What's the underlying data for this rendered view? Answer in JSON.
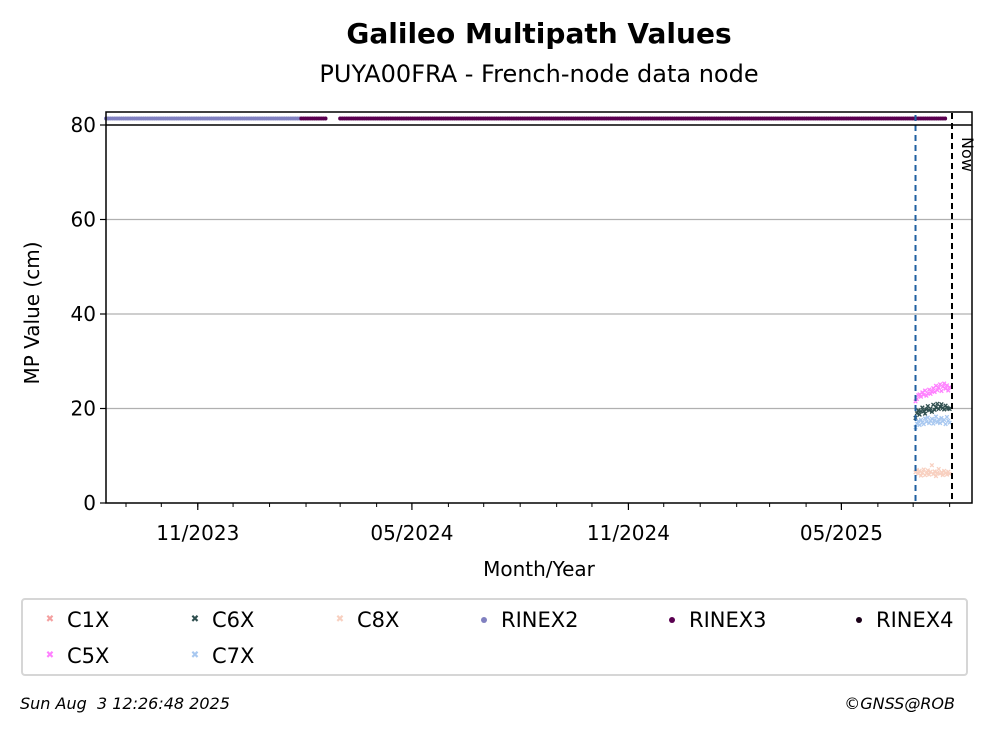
{
  "chart_data": {
    "type": "scatter",
    "title": "Galileo Multipath Values",
    "subtitle": "PUYA00FRA - French-node data node",
    "xlabel": "Month/Year",
    "ylabel": "MP Value (cm)",
    "x_range": [
      "2023-08-15",
      "2025-08-20"
    ],
    "ylim": [
      0,
      80
    ],
    "y_ticks": [
      0,
      20,
      40,
      60,
      80
    ],
    "x_ticks": [
      {
        "date": "2023-11-01",
        "label": "11/2023"
      },
      {
        "date": "2024-05-01",
        "label": "05/2024"
      },
      {
        "date": "2024-11-01",
        "label": "11/2024"
      },
      {
        "date": "2025-05-01",
        "label": "05/2025"
      }
    ],
    "grid": "horizontal",
    "now_label": "Now",
    "now_date": "2025-08-03",
    "vline_blue_date": "2025-07-03",
    "legend_placement": "bottom",
    "series": [
      {
        "name": "C1X",
        "color": "#f4a0a0",
        "marker": "x",
        "start": "2025-07-03",
        "end": "2025-08-01",
        "points": []
      },
      {
        "name": "C5X",
        "color": "#ff80ff",
        "marker": "x",
        "start": "2025-07-03",
        "end": "2025-08-01",
        "points": [
          21.5,
          22.0,
          22.8,
          23.0,
          22.5,
          23.4,
          22.9,
          23.8,
          22.7,
          23.2,
          24.0,
          23.1,
          23.6,
          24.3,
          23.5,
          24.8,
          23.9,
          24.4,
          25.1,
          23.7,
          24.6,
          25.3,
          24.2,
          24.9,
          23.8,
          24.5
        ]
      },
      {
        "name": "C6X",
        "color": "#2f4f4f",
        "marker": "x",
        "start": "2025-07-03",
        "end": "2025-08-01",
        "points": [
          18.0,
          19.0,
          19.6,
          18.7,
          19.4,
          20.2,
          19.5,
          18.9,
          19.8,
          20.5,
          19.6,
          20.0,
          19.3,
          20.8,
          19.7,
          20.3,
          21.0,
          19.9,
          20.4,
          20.9,
          20.1,
          19.8,
          20.6,
          20.2,
          20.0,
          19.9
        ]
      },
      {
        "name": "C7X",
        "color": "#a8c8f0",
        "marker": "x",
        "start": "2025-07-03",
        "end": "2025-08-01",
        "points": [
          16.0,
          16.8,
          17.3,
          16.5,
          17.6,
          17.0,
          16.7,
          17.9,
          17.2,
          18.1,
          16.9,
          17.4,
          17.8,
          16.8,
          17.5,
          18.3,
          17.1,
          17.7,
          16.9,
          18.0,
          17.3,
          17.6,
          16.7,
          18.2,
          17.4,
          17.0
        ]
      },
      {
        "name": "C8X",
        "color": "#f8d0c0",
        "marker": "x",
        "start": "2025-07-03",
        "end": "2025-08-01",
        "points": [
          6.5,
          7.0,
          6.2,
          6.8,
          5.8,
          6.4,
          7.1,
          5.9,
          6.3,
          6.9,
          6.0,
          6.6,
          8.0,
          6.1,
          6.7,
          5.7,
          6.4,
          7.2,
          6.2,
          6.5,
          5.9,
          6.8,
          6.3,
          6.0,
          6.6,
          6.2
        ]
      },
      {
        "name": "RINEX2",
        "color": "#8080c0",
        "marker": "o"
      },
      {
        "name": "RINEX3",
        "color": "#5a0050",
        "marker": "o"
      },
      {
        "name": "RINEX4",
        "color": "#1a0018",
        "marker": "o"
      }
    ],
    "rinex_bands": [
      {
        "name": "RINEX2",
        "start": "2023-08-15",
        "end": "2024-01-28"
      },
      {
        "name": "RINEX3",
        "start": "2024-01-28",
        "end": "2024-02-18"
      },
      {
        "name": "RINEX3",
        "start": "2024-03-01",
        "end": "2025-07-30"
      }
    ]
  },
  "legend": {
    "items": [
      {
        "label": "C1X",
        "color": "#f4a0a0",
        "marker": "x"
      },
      {
        "label": "C6X",
        "color": "#2f4f4f",
        "marker": "x"
      },
      {
        "label": "C8X",
        "color": "#f8d0c0",
        "marker": "x"
      },
      {
        "label": "RINEX2",
        "color": "#8080c0",
        "marker": "o"
      },
      {
        "label": "RINEX3",
        "color": "#5a0050",
        "marker": "o"
      },
      {
        "label": "RINEX4",
        "color": "#1a0018",
        "marker": "o"
      },
      {
        "label": "C5X",
        "color": "#ff80ff",
        "marker": "x"
      },
      {
        "label": "C7X",
        "color": "#a8c8f0",
        "marker": "x"
      }
    ]
  },
  "footer": {
    "timestamp": "Sun Aug  3 12:26:48 2025",
    "copyright": "©GNSS@ROB"
  }
}
